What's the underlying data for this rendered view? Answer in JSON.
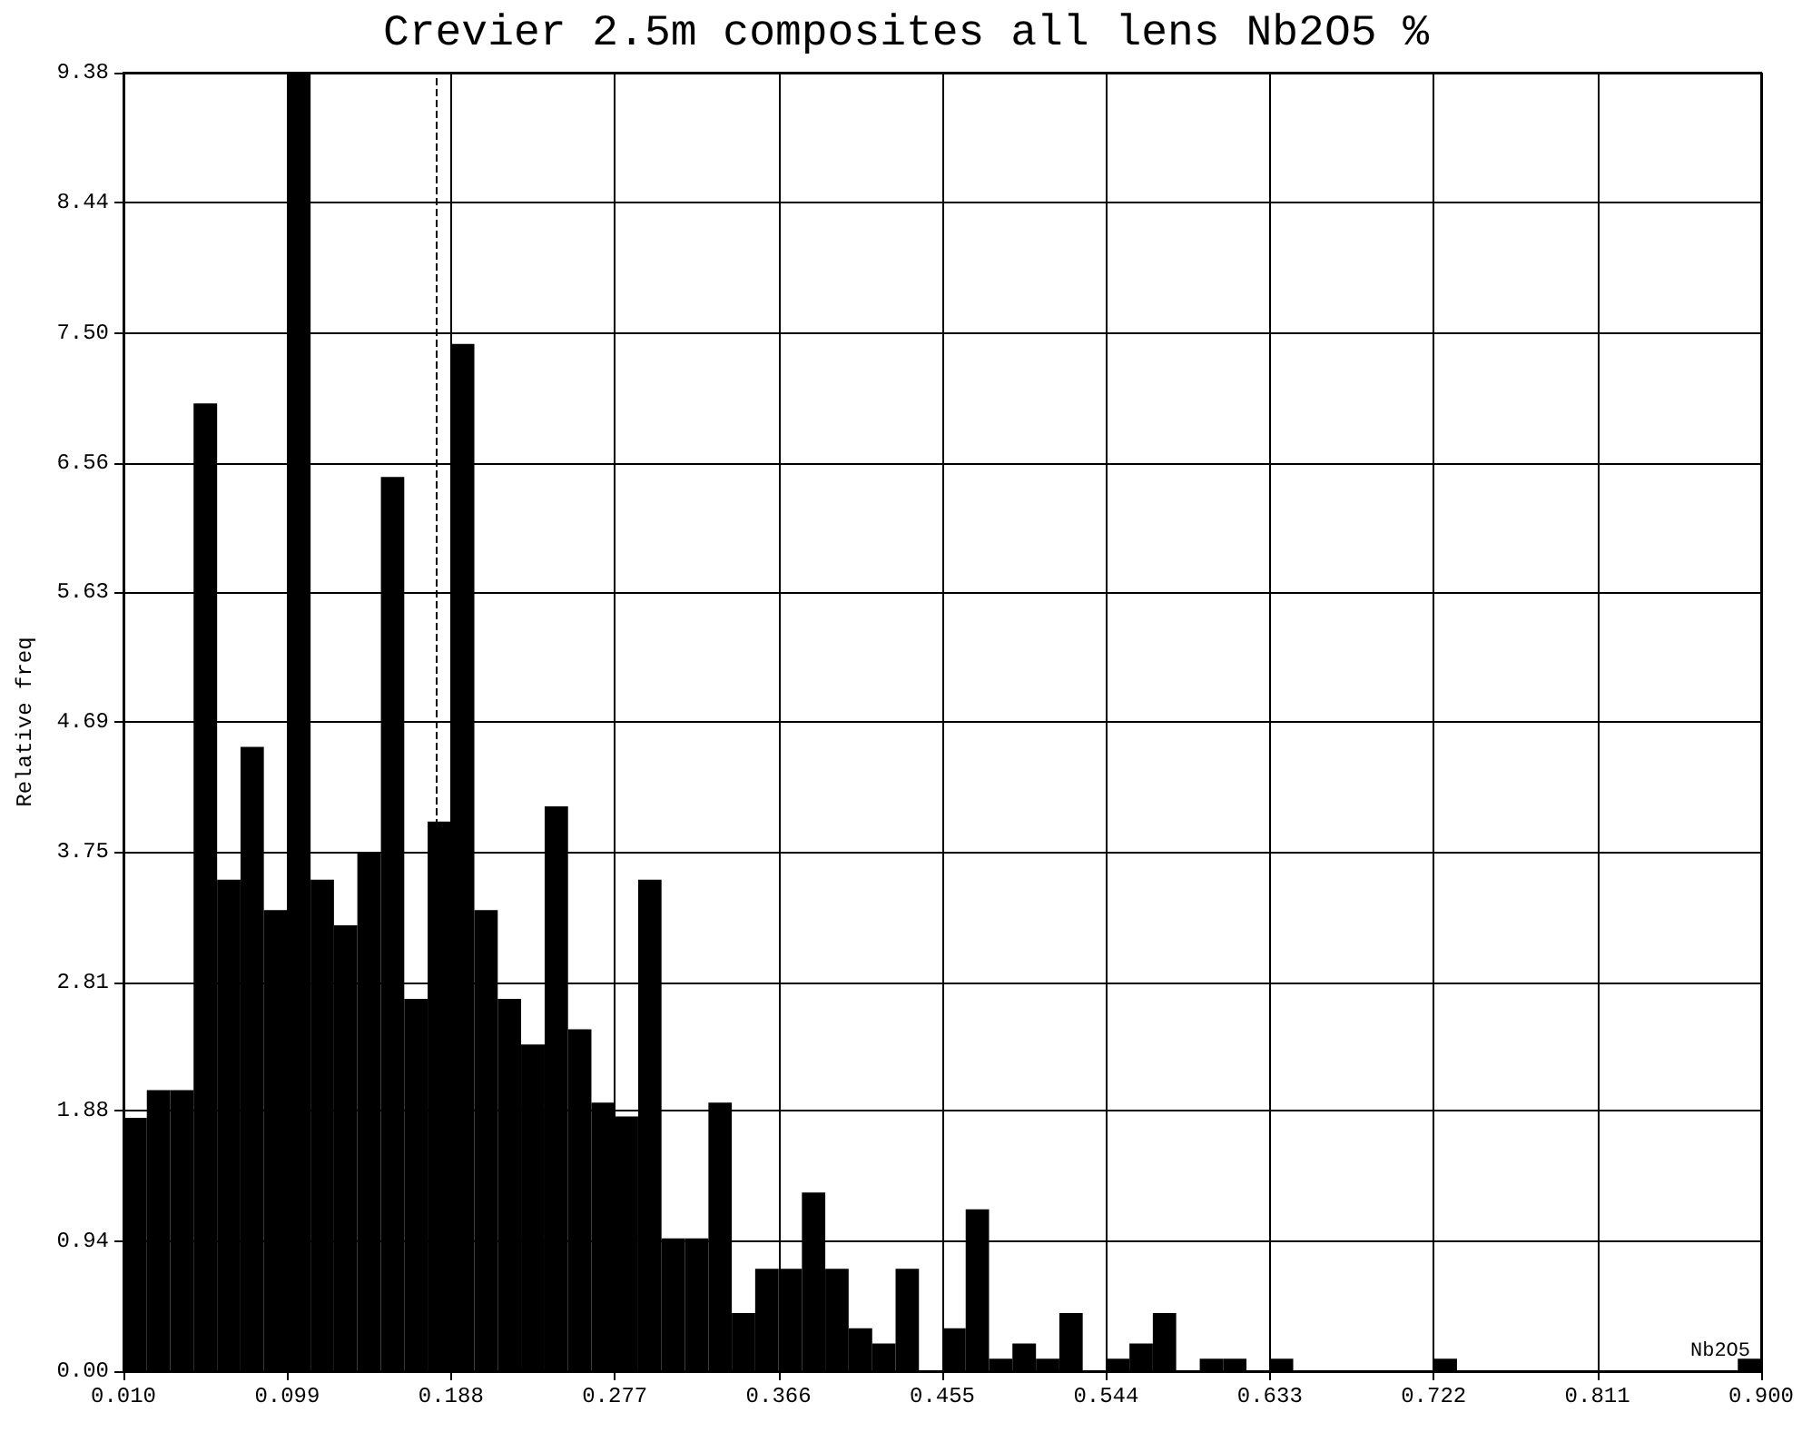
{
  "chart_data": {
    "type": "histogram",
    "title": "Crevier 2.5m composites all lens Nb2O5 %",
    "xlabel": "Nb2O5",
    "ylabel": "Relative freq",
    "color": "#000000",
    "bins": [
      0.01,
      0.0227,
      0.0354,
      0.0481,
      0.0609,
      0.0736,
      0.0863,
      0.099,
      0.1117,
      0.1244,
      0.1371,
      0.1499,
      0.1626,
      0.1753,
      0.188,
      0.2007,
      0.2134,
      0.2261,
      0.2389,
      0.2516,
      0.2643,
      0.277,
      0.2897,
      0.3024,
      0.3151,
      0.3279,
      0.3406,
      0.3533,
      0.366,
      0.3787,
      0.3914,
      0.4041,
      0.4169,
      0.4296,
      0.4423,
      0.455,
      0.4677,
      0.4804,
      0.4931,
      0.5059,
      0.5186,
      0.5313,
      0.544,
      0.5567,
      0.5694,
      0.5821,
      0.5949,
      0.6076,
      0.6203,
      0.633,
      0.6457,
      0.6584,
      0.6711,
      0.6839,
      0.6966,
      0.7093,
      0.722,
      0.7347,
      0.7474,
      0.7601,
      0.7729,
      0.7856,
      0.7983,
      0.811,
      0.8237,
      0.8364,
      0.8491,
      0.8619,
      0.8746,
      0.8873,
      0.9
    ],
    "values": [
      1.83,
      2.03,
      2.03,
      6.99,
      3.55,
      4.51,
      3.33,
      9.38,
      3.55,
      3.22,
      3.75,
      6.46,
      2.69,
      3.97,
      7.42,
      3.33,
      2.69,
      2.36,
      4.08,
      2.47,
      1.94,
      1.84,
      3.55,
      0.96,
      0.96,
      1.94,
      0.42,
      0.74,
      0.74,
      1.29,
      0.74,
      0.31,
      0.2,
      0.74,
      0,
      0.31,
      1.17,
      0.09,
      0.2,
      0.09,
      0.42,
      0,
      0.09,
      0.2,
      0.42,
      0,
      0.09,
      0.09,
      0,
      0.09,
      0,
      0,
      0,
      0,
      0,
      0,
      0.09,
      0,
      0,
      0,
      0,
      0,
      0,
      0,
      0,
      0,
      0,
      0,
      0,
      0.09
    ],
    "xlim": [
      0.01,
      0.9
    ],
    "xticks": [
      {
        "value": 0.01,
        "label": "0.010"
      },
      {
        "value": 0.099,
        "label": "0.099"
      },
      {
        "value": 0.188,
        "label": "0.188"
      },
      {
        "value": 0.277,
        "label": "0.277"
      },
      {
        "value": 0.366,
        "label": "0.366"
      },
      {
        "value": 0.455,
        "label": "0.455"
      },
      {
        "value": 0.544,
        "label": "0.544"
      },
      {
        "value": 0.633,
        "label": "0.633"
      },
      {
        "value": 0.722,
        "label": "0.722"
      },
      {
        "value": 0.811,
        "label": "0.811"
      },
      {
        "value": 0.9,
        "label": "0.900"
      }
    ],
    "ylim": [
      0,
      9.38
    ],
    "yticks": [
      {
        "value": 0,
        "label": "0.00"
      },
      {
        "value": 0.94,
        "label": "0.94"
      },
      1.88,
      2.81,
      3.75,
      4.69,
      5.63,
      6.56,
      {
        "value": 7.5,
        "label": "7.50"
      },
      8.44,
      9.38
    ],
    "ref_lines": [
      {
        "axis": "x",
        "value": 0.183,
        "label": null,
        "color": "#000000",
        "line_style": "dashed"
      }
    ],
    "grid": true
  }
}
